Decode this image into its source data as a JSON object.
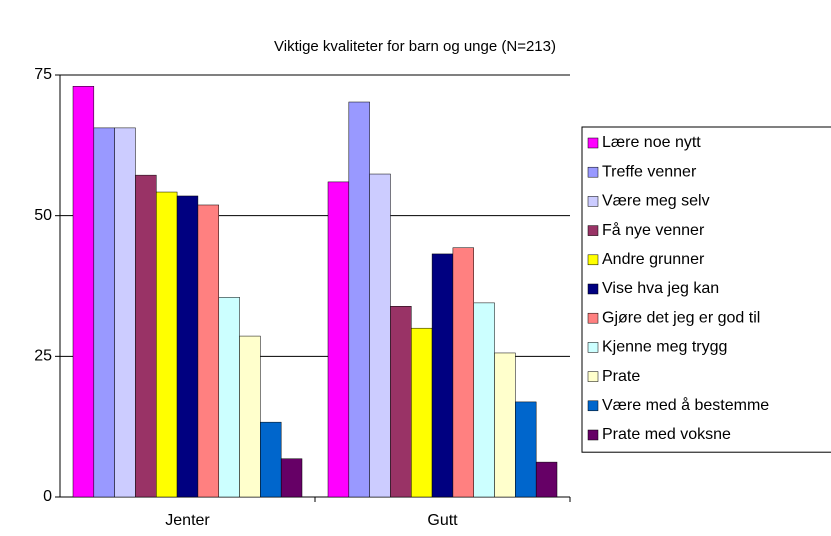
{
  "chart_data": {
    "type": "bar",
    "title": "Viktige kvaliteter for barn og unge (N=213)",
    "categories": [
      "Jenter",
      "Gutt"
    ],
    "series": [
      {
        "name": "Lære noe nytt",
        "color": "#ff00ff",
        "values": [
          73.0,
          56.0
        ]
      },
      {
        "name": "Treffe venner",
        "color": "#9999ff",
        "values": [
          65.6,
          70.2
        ]
      },
      {
        "name": "Være meg selv",
        "color": "#ccccff",
        "values": [
          65.6,
          57.4
        ]
      },
      {
        "name": "Få nye venner",
        "color": "#993366",
        "values": [
          57.2,
          33.9
        ]
      },
      {
        "name": "Andre grunner",
        "color": "#ffff00",
        "values": [
          54.2,
          30.0
        ]
      },
      {
        "name": "Vise hva jeg kan",
        "color": "#000080",
        "values": [
          53.5,
          43.2
        ]
      },
      {
        "name": "Gjøre det jeg er god til",
        "color": "#ff8080",
        "values": [
          51.9,
          44.3
        ]
      },
      {
        "name": "Kjenne meg trygg",
        "color": "#ccffff",
        "values": [
          35.5,
          34.5
        ]
      },
      {
        "name": "Prate",
        "color": "#ffffcc",
        "values": [
          28.6,
          25.6
        ]
      },
      {
        "name": "Være med å bestemme",
        "color": "#0066cc",
        "values": [
          13.3,
          16.9
        ]
      },
      {
        "name": "Prate med voksne",
        "color": "#660066",
        "values": [
          6.8,
          6.2
        ]
      }
    ],
    "ylim": [
      0,
      75
    ],
    "yticks": [
      0,
      25,
      50,
      75
    ],
    "grid": true,
    "legend": "right"
  }
}
